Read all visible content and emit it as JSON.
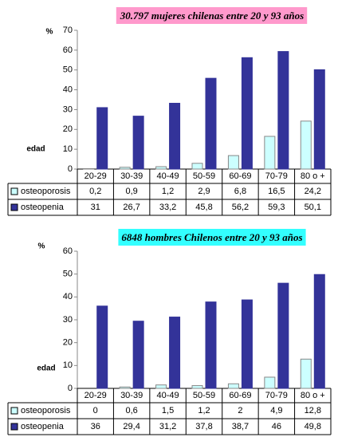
{
  "chart_data": [
    {
      "type": "bar",
      "title": "30.797 mujeres chilenas entre 20 y 93 años",
      "y_label": "%",
      "x_label": "edad",
      "title_color": "#ff99cc",
      "categories": [
        "20-29",
        "30-39",
        "40-49",
        "50-59",
        "60-69",
        "70-79",
        "80 o +"
      ],
      "series": [
        {
          "name": "osteoporosis",
          "color": "#ccffff",
          "values": [
            0.2,
            0.9,
            1.2,
            2.9,
            6.8,
            16.5,
            24.2
          ],
          "value_labels": [
            "0,2",
            "0,9",
            "1,2",
            "2,9",
            "6,8",
            "16,5",
            "24,2"
          ]
        },
        {
          "name": "osteopenia",
          "color": "#333399",
          "values": [
            31,
            26.7,
            33.2,
            45.8,
            56.2,
            59.3,
            50.1
          ],
          "value_labels": [
            "31",
            "26,7",
            "33,2",
            "45,8",
            "56,2",
            "59,3",
            "50,1"
          ]
        }
      ],
      "ylim": [
        0,
        70
      ],
      "yticks": [
        0,
        10,
        20,
        30,
        40,
        50,
        60,
        70
      ]
    },
    {
      "type": "bar",
      "title": "6848 hombres Chilenos entre 20 y 93 años",
      "y_label": "%",
      "x_label": "edad",
      "title_color": "#33ffff",
      "categories": [
        "20-29",
        "30-39",
        "40-49",
        "50-59",
        "60-69",
        "70-79",
        "80 o +"
      ],
      "series": [
        {
          "name": "osteoporosis",
          "color": "#ccffff",
          "values": [
            0,
            0.6,
            1.5,
            1.2,
            2,
            4.9,
            12.8
          ],
          "value_labels": [
            "0",
            "0,6",
            "1,5",
            "1,2",
            "2",
            "4,9",
            "12,8"
          ]
        },
        {
          "name": "osteopenia",
          "color": "#333399",
          "values": [
            36,
            29.4,
            31.2,
            37.8,
            38.7,
            46,
            49.8
          ],
          "value_labels": [
            "36",
            "29,4",
            "31,2",
            "37,8",
            "38,7",
            "46",
            "49,8"
          ]
        }
      ],
      "ylim": [
        0,
        60
      ],
      "yticks": [
        0,
        10,
        20,
        30,
        40,
        50,
        60
      ]
    }
  ]
}
